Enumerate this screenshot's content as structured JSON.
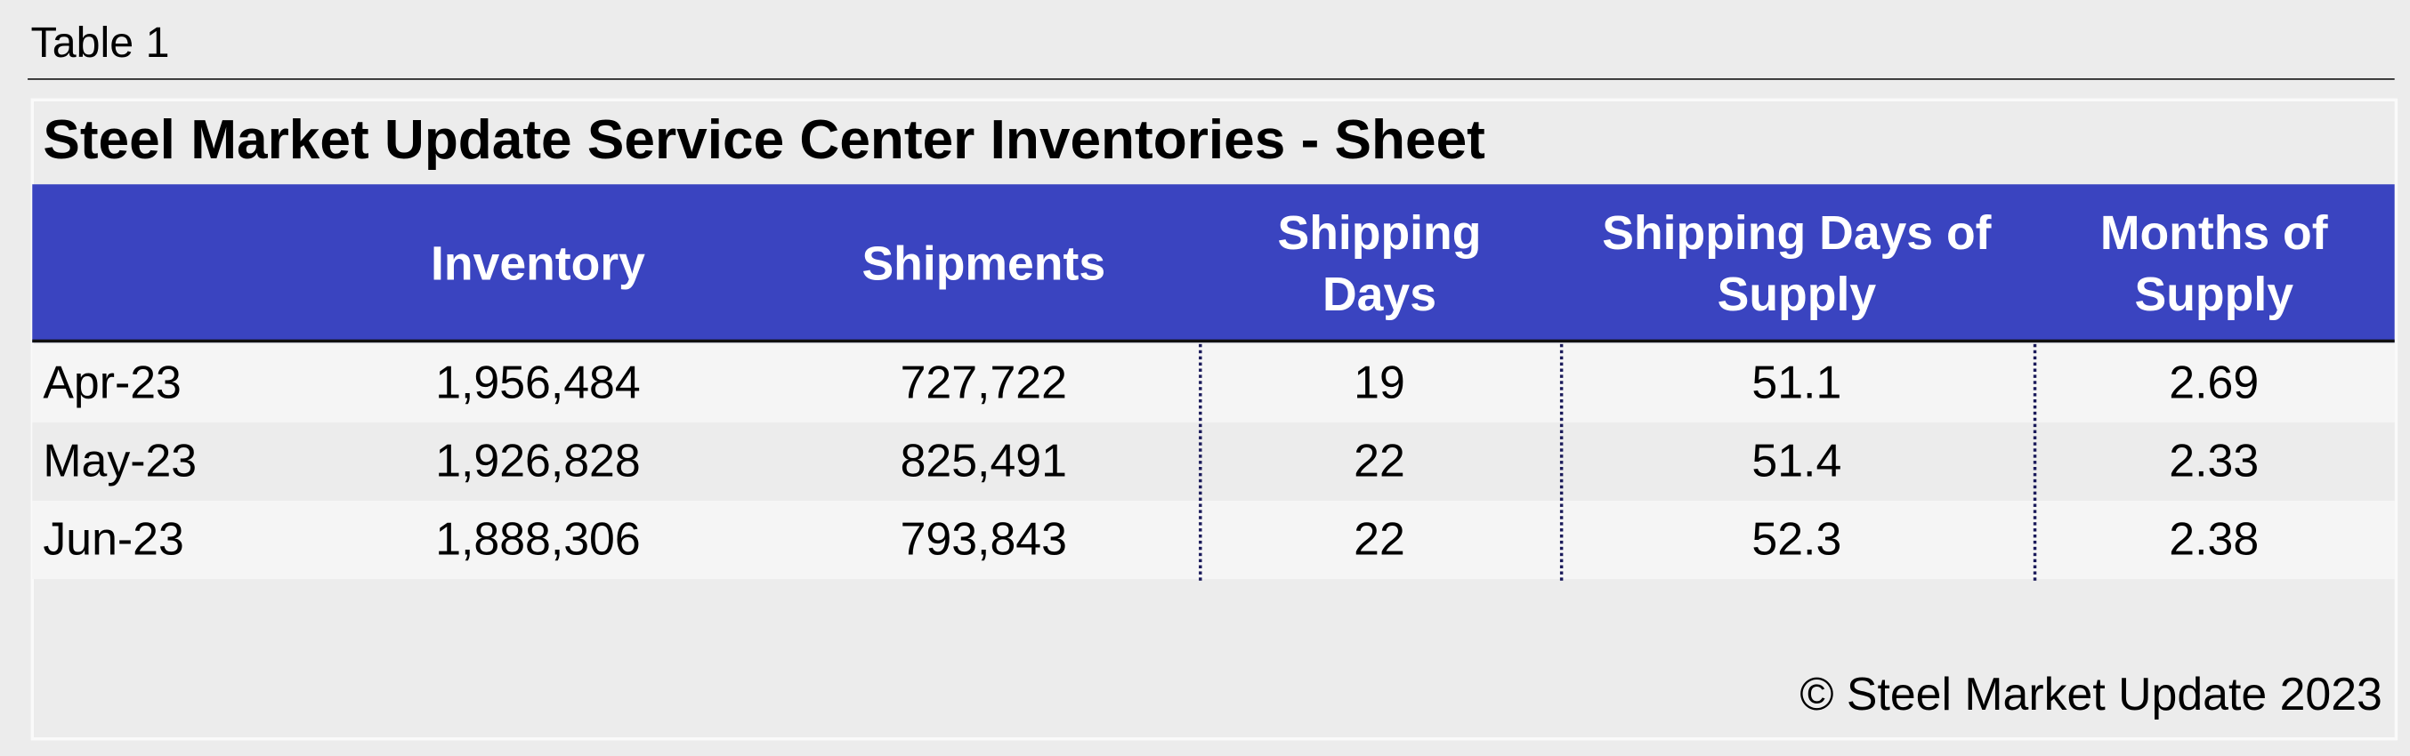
{
  "label": "Table 1",
  "table": {
    "title": "Steel Market Update Service Center Inventories - Sheet",
    "columns": [
      "Inventory",
      "Shipments",
      "Shipping Days",
      "Shipping Days of Supply",
      "Months of Supply"
    ],
    "rows": [
      [
        "Apr-23",
        "1,956,484",
        "727,722",
        "19",
        "51.1",
        "2.69"
      ],
      [
        "May-23",
        "1,926,828",
        "825,491",
        "22",
        "51.4",
        "2.33"
      ],
      [
        "Jun-23",
        "1,888,306",
        "793,843",
        "22",
        "52.3",
        "2.38"
      ]
    ]
  },
  "footer": "© Steel Market Update 2023"
}
